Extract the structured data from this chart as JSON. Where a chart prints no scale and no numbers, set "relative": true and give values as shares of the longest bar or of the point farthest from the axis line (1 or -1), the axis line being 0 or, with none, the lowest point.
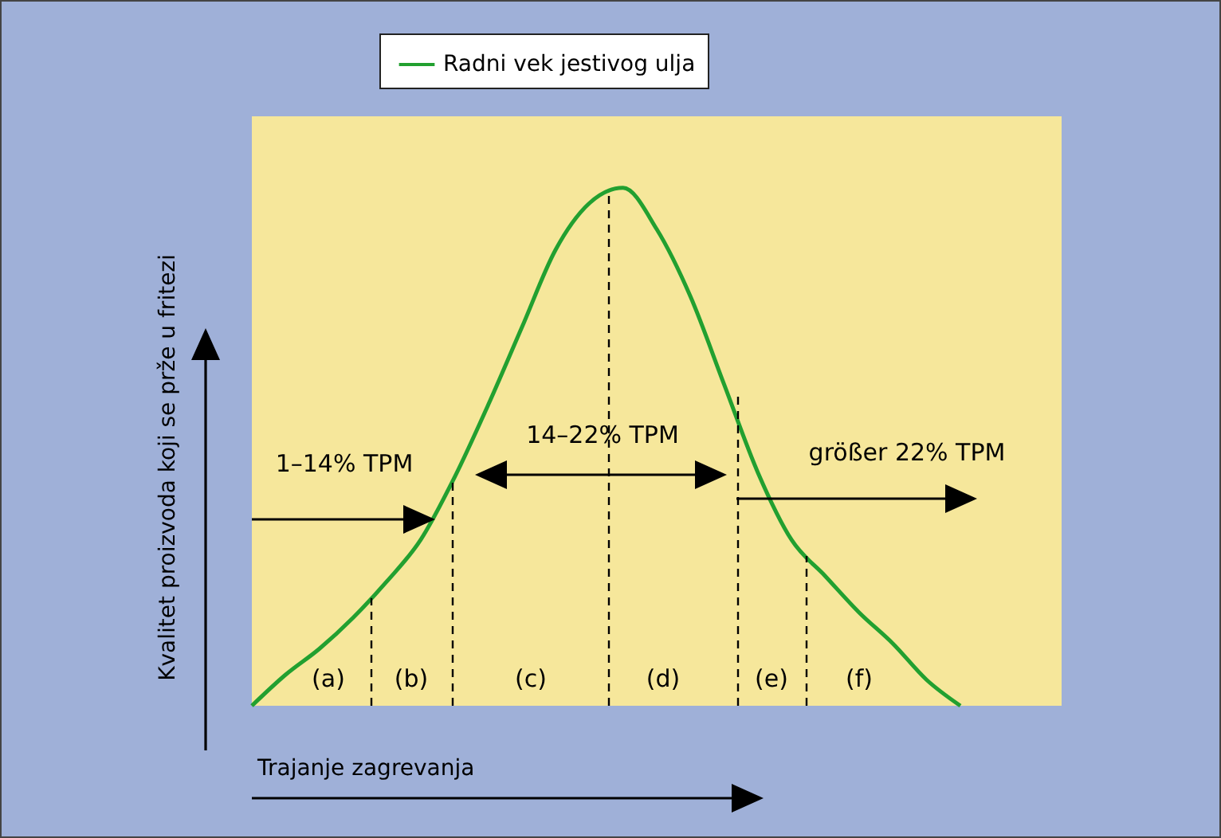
{
  "chart_data": {
    "type": "line",
    "relative": true,
    "xlabel": "Trajanje zagrevanja",
    "ylabel": "Kvalitet proizvoda koji se prže u fritezi",
    "legend": "top",
    "categories": [
      null,
      null,
      null,
      null,
      null,
      null,
      null,
      null,
      null,
      null,
      null,
      null,
      null,
      null,
      null,
      null,
      null,
      null,
      null,
      null,
      null,
      null,
      null,
      null,
      null
    ],
    "series": [
      {
        "name": "Radni vek jestivog ulja",
        "color": "#22a030",
        "values": [
          0,
          0.06,
          0.11,
          0.17,
          0.24,
          0.32,
          0.44,
          0.58,
          0.73,
          0.88,
          0.97,
          1,
          0.92,
          0.79,
          0.62,
          0.45,
          0.32,
          0.25,
          0.18,
          0.12,
          0.05,
          0,
          null,
          null,
          null
        ]
      }
    ],
    "annotations": [
      "(a)",
      "(b)",
      "(c)",
      "(d)",
      "(e)",
      "(f)",
      "1–14% TPM",
      "14–22% TPM",
      "größer 22% TPM"
    ]
  }
}
